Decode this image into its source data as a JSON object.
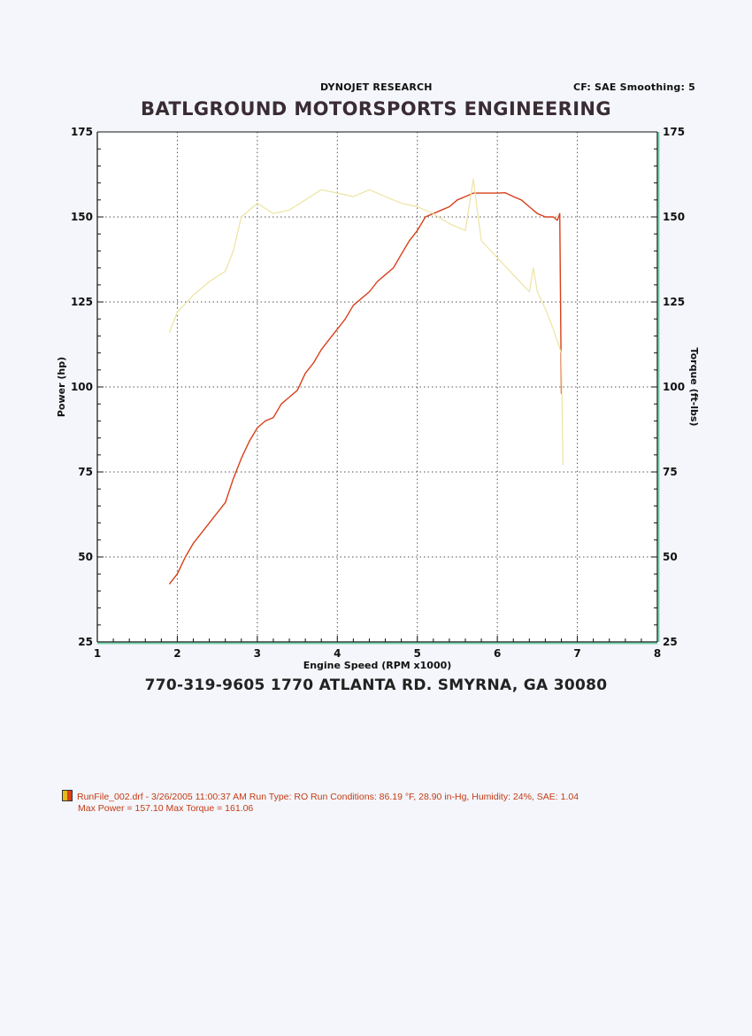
{
  "header": {
    "dyno_title": "DYNOJET RESEARCH",
    "cf_info": "CF: SAE  Smoothing: 5",
    "shop_name": "BATLGROUND MOTORSPORTS ENGINEERING"
  },
  "footer": {
    "address": "770-319-9605  1770 ATLANTA RD.  SMYRNA, GA 30080"
  },
  "legend": {
    "run_line": "RunFile_002.drf - 3/26/2005 11:00:37 AM  Run Type: RO  Run Conditions: 86.19 °F, 28.90 in-Hg,  Humidity:  24%, SAE: 1.04",
    "max_line": "Max Power = 157.10  Max Torque = 161.06"
  },
  "colors": {
    "power_line": "#d8401a",
    "torque_line": "#ece4a0",
    "grid": "#555555",
    "axis": "#111111",
    "axis_accent": "#7bd3ad"
  },
  "chart_data": {
    "type": "line",
    "title": "",
    "xlabel": "Engine Speed (RPM x1000)",
    "ylabel_left": "Power (hp)",
    "ylabel_right": "Torque (ft-lbs)",
    "xlim": [
      1,
      8
    ],
    "ylim_left": [
      25,
      175
    ],
    "ylim_right": [
      25,
      175
    ],
    "x_ticks": [
      1,
      2,
      3,
      4,
      5,
      6,
      7,
      8
    ],
    "y_ticks_left": [
      25,
      50,
      75,
      100,
      125,
      150,
      175
    ],
    "y_ticks_right": [
      25,
      50,
      75,
      100,
      125,
      150,
      175
    ],
    "grid": true,
    "series": [
      {
        "name": "Power",
        "axis": "left",
        "points": [
          [
            1.9,
            42
          ],
          [
            2.0,
            45
          ],
          [
            2.1,
            50
          ],
          [
            2.2,
            54
          ],
          [
            2.3,
            57
          ],
          [
            2.4,
            60
          ],
          [
            2.5,
            63
          ],
          [
            2.6,
            66
          ],
          [
            2.7,
            73
          ],
          [
            2.8,
            79
          ],
          [
            2.9,
            84
          ],
          [
            3.0,
            88
          ],
          [
            3.1,
            90
          ],
          [
            3.2,
            91
          ],
          [
            3.3,
            95
          ],
          [
            3.4,
            97
          ],
          [
            3.5,
            99
          ],
          [
            3.6,
            104
          ],
          [
            3.7,
            107
          ],
          [
            3.8,
            111
          ],
          [
            3.9,
            114
          ],
          [
            4.0,
            117
          ],
          [
            4.1,
            120
          ],
          [
            4.2,
            124
          ],
          [
            4.3,
            126
          ],
          [
            4.4,
            128
          ],
          [
            4.5,
            131
          ],
          [
            4.6,
            133
          ],
          [
            4.7,
            135
          ],
          [
            4.8,
            139
          ],
          [
            4.9,
            143
          ],
          [
            5.0,
            146
          ],
          [
            5.1,
            150
          ],
          [
            5.2,
            151
          ],
          [
            5.3,
            152
          ],
          [
            5.4,
            153
          ],
          [
            5.5,
            155
          ],
          [
            5.6,
            156
          ],
          [
            5.7,
            157
          ],
          [
            6.0,
            157
          ],
          [
            6.1,
            157.1
          ],
          [
            6.2,
            156
          ],
          [
            6.3,
            155
          ],
          [
            6.4,
            153
          ],
          [
            6.5,
            151
          ],
          [
            6.6,
            150
          ],
          [
            6.7,
            150
          ],
          [
            6.75,
            149
          ],
          [
            6.78,
            151
          ],
          [
            6.8,
            98
          ]
        ]
      },
      {
        "name": "Torque",
        "axis": "right",
        "points": [
          [
            1.9,
            116
          ],
          [
            2.0,
            122
          ],
          [
            2.2,
            127
          ],
          [
            2.4,
            131
          ],
          [
            2.6,
            134
          ],
          [
            2.7,
            140
          ],
          [
            2.8,
            150
          ],
          [
            3.0,
            154
          ],
          [
            3.2,
            151
          ],
          [
            3.4,
            152
          ],
          [
            3.6,
            155
          ],
          [
            3.8,
            158
          ],
          [
            4.0,
            157
          ],
          [
            4.2,
            156
          ],
          [
            4.4,
            158
          ],
          [
            4.6,
            156
          ],
          [
            4.8,
            154
          ],
          [
            5.0,
            153
          ],
          [
            5.2,
            151
          ],
          [
            5.4,
            148
          ],
          [
            5.6,
            146
          ],
          [
            5.7,
            161.06
          ],
          [
            5.75,
            152
          ],
          [
            5.8,
            143
          ],
          [
            6.0,
            138
          ],
          [
            6.2,
            133
          ],
          [
            6.4,
            128
          ],
          [
            6.45,
            135
          ],
          [
            6.5,
            128
          ],
          [
            6.6,
            123
          ],
          [
            6.7,
            117
          ],
          [
            6.8,
            110
          ],
          [
            6.82,
            77
          ]
        ]
      }
    ]
  }
}
